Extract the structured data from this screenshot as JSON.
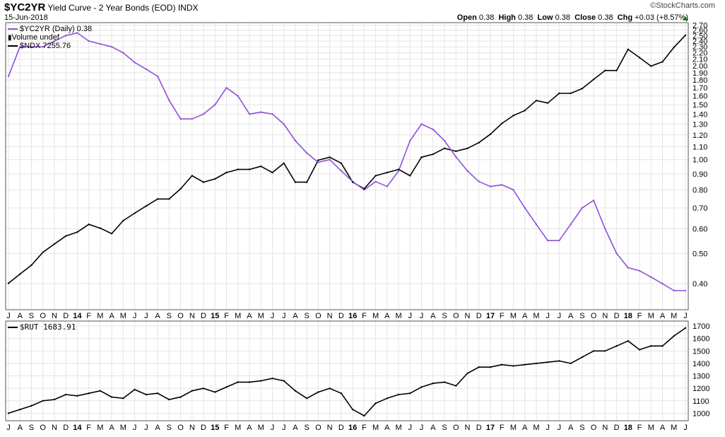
{
  "header": {
    "symbol": "$YC2YR",
    "title": "Yield Curve - 2 Year Bonds (EOD)",
    "exchange": "INDX",
    "date": "15-Jun-2018",
    "brand": "©StockCharts.com",
    "open_label": "Open",
    "open": "0.38",
    "high_label": "High",
    "high": "0.38",
    "low_label": "Low",
    "low": "0.38",
    "close_label": "Close",
    "close": "0.38",
    "chg_label": "Chg",
    "chg": "+0.03 (+8.57%)"
  },
  "legend": {
    "yc": "$YC2YR (Daily) 0.38",
    "volume": "Volume undef",
    "ndx": "$NDX 7255.76",
    "rut": "$RUT 1683.91"
  },
  "colors": {
    "yc": "#8f4fd8",
    "ndx": "#000000",
    "rut": "#000000",
    "grid": "#e4e4e4",
    "up": "#2a9a2a"
  },
  "chart_data": [
    {
      "type": "line",
      "title": "Yield Curve - 2 Year Bonds (EOD)",
      "x": [
        "2013-07",
        "2013-08",
        "2013-09",
        "2013-10",
        "2013-11",
        "2013-12",
        "2014-01",
        "2014-02",
        "2014-03",
        "2014-04",
        "2014-05",
        "2014-06",
        "2014-07",
        "2014-08",
        "2014-09",
        "2014-10",
        "2014-11",
        "2014-12",
        "2015-01",
        "2015-02",
        "2015-03",
        "2015-04",
        "2015-05",
        "2015-06",
        "2015-07",
        "2015-08",
        "2015-09",
        "2015-10",
        "2015-11",
        "2015-12",
        "2016-01",
        "2016-02",
        "2016-03",
        "2016-04",
        "2016-05",
        "2016-06",
        "2016-07",
        "2016-08",
        "2016-09",
        "2016-10",
        "2016-11",
        "2016-12",
        "2017-01",
        "2017-02",
        "2017-03",
        "2017-04",
        "2017-05",
        "2017-06",
        "2017-07",
        "2017-08",
        "2017-09",
        "2017-10",
        "2017-11",
        "2017-12",
        "2018-01",
        "2018-02",
        "2018-03",
        "2018-04",
        "2018-05",
        "2018-06"
      ],
      "xticks": [
        "J",
        "A",
        "S",
        "O",
        "N",
        "D",
        "14",
        "F",
        "M",
        "A",
        "M",
        "J",
        "J",
        "A",
        "S",
        "O",
        "N",
        "D",
        "15",
        "F",
        "M",
        "A",
        "M",
        "J",
        "J",
        "A",
        "S",
        "O",
        "N",
        "D",
        "16",
        "F",
        "M",
        "A",
        "M",
        "J",
        "J",
        "A",
        "S",
        "O",
        "N",
        "D",
        "17",
        "F",
        "M",
        "A",
        "M",
        "J",
        "J",
        "A",
        "S",
        "O",
        "N",
        "D",
        "18",
        "F",
        "M",
        "A",
        "M",
        "J"
      ],
      "yscale": "log",
      "yticks": [
        2.7,
        2.6,
        2.5,
        2.4,
        2.3,
        2.2,
        2.1,
        2.0,
        1.9,
        1.8,
        1.7,
        1.6,
        1.5,
        1.4,
        1.3,
        1.2,
        1.1,
        1.0,
        0.9,
        0.8,
        0.7,
        0.6,
        0.5,
        0.4
      ],
      "ylim": [
        0.33,
        2.75
      ],
      "series": [
        {
          "name": "$YC2YR",
          "values": [
            1.85,
            2.3,
            2.3,
            2.3,
            2.4,
            2.5,
            2.55,
            2.4,
            2.35,
            2.3,
            2.2,
            2.05,
            1.95,
            1.85,
            1.55,
            1.35,
            1.35,
            1.4,
            1.5,
            1.7,
            1.6,
            1.4,
            1.42,
            1.4,
            1.3,
            1.15,
            1.05,
            0.98,
            1.0,
            0.92,
            0.85,
            0.8,
            0.85,
            0.82,
            0.92,
            1.15,
            1.3,
            1.25,
            1.15,
            1.02,
            0.92,
            0.85,
            0.82,
            0.83,
            0.8,
            0.7,
            0.62,
            0.55,
            0.55,
            0.62,
            0.7,
            0.74,
            0.6,
            0.5,
            0.45,
            0.44,
            0.42,
            0.4,
            0.38,
            0.38
          ]
        },
        {
          "name": "$NDX",
          "yscale": "log",
          "values": [
            3000,
            3100,
            3200,
            3350,
            3450,
            3550,
            3600,
            3700,
            3650,
            3580,
            3750,
            3850,
            3950,
            4050,
            4050,
            4200,
            4400,
            4300,
            4350,
            4450,
            4500,
            4500,
            4550,
            4450,
            4600,
            4300,
            4300,
            4650,
            4700,
            4600,
            4300,
            4200,
            4400,
            4450,
            4500,
            4400,
            4700,
            4750,
            4850,
            4800,
            4850,
            4950,
            5100,
            5300,
            5450,
            5550,
            5750,
            5700,
            5900,
            5900,
            6000,
            6200,
            6400,
            6400,
            6900,
            6700,
            6500,
            6600,
            6950,
            7255.76
          ]
        }
      ]
    },
    {
      "type": "line",
      "title": "$RUT",
      "x": [
        "2013-07",
        "2013-08",
        "2013-09",
        "2013-10",
        "2013-11",
        "2013-12",
        "2014-01",
        "2014-02",
        "2014-03",
        "2014-04",
        "2014-05",
        "2014-06",
        "2014-07",
        "2014-08",
        "2014-09",
        "2014-10",
        "2014-11",
        "2014-12",
        "2015-01",
        "2015-02",
        "2015-03",
        "2015-04",
        "2015-05",
        "2015-06",
        "2015-07",
        "2015-08",
        "2015-09",
        "2015-10",
        "2015-11",
        "2015-12",
        "2016-01",
        "2016-02",
        "2016-03",
        "2016-04",
        "2016-05",
        "2016-06",
        "2016-07",
        "2016-08",
        "2016-09",
        "2016-10",
        "2016-11",
        "2016-12",
        "2017-01",
        "2017-02",
        "2017-03",
        "2017-04",
        "2017-05",
        "2017-06",
        "2017-07",
        "2017-08",
        "2017-09",
        "2017-10",
        "2017-11",
        "2017-12",
        "2018-01",
        "2018-02",
        "2018-03",
        "2018-04",
        "2018-05",
        "2018-06"
      ],
      "yticks": [
        1700,
        1600,
        1500,
        1400,
        1300,
        1200,
        1100,
        1000
      ],
      "ylim": [
        940,
        1740
      ],
      "series": [
        {
          "name": "$RUT",
          "values": [
            1000,
            1030,
            1060,
            1100,
            1110,
            1150,
            1140,
            1160,
            1180,
            1130,
            1120,
            1190,
            1150,
            1160,
            1110,
            1130,
            1180,
            1200,
            1170,
            1210,
            1250,
            1250,
            1260,
            1280,
            1260,
            1180,
            1120,
            1170,
            1200,
            1160,
            1030,
            980,
            1080,
            1120,
            1150,
            1160,
            1210,
            1240,
            1250,
            1220,
            1320,
            1370,
            1370,
            1390,
            1380,
            1390,
            1400,
            1410,
            1420,
            1400,
            1450,
            1500,
            1500,
            1540,
            1580,
            1510,
            1540,
            1540,
            1620,
            1683.91
          ]
        }
      ]
    }
  ]
}
